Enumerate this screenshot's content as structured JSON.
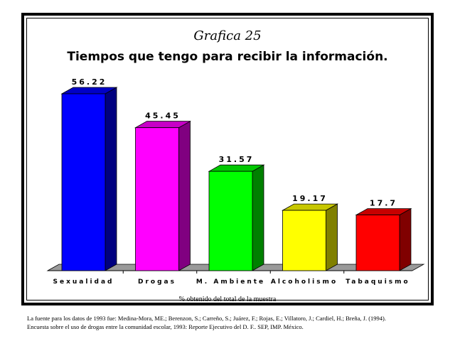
{
  "chart_data": {
    "type": "bar",
    "title": "Grafica 25",
    "subtitle": "Tiempos que tengo para recibir la información.",
    "categories": [
      "Sexualidad",
      "Drogas",
      "M. Ambiente",
      "Alcoholismo",
      "Tabaquismo"
    ],
    "values": [
      56.22,
      45.45,
      31.57,
      19.17,
      17.7
    ],
    "value_labels": [
      "56.22",
      "45.45",
      "31.57",
      "19.17",
      "17.7"
    ],
    "colors": [
      "#0000ff",
      "#ff00ff",
      "#00ff00",
      "#ffff00",
      "#ff0000"
    ],
    "xlabel": "% obtenido del total de la muestra",
    "ylabel": "",
    "ylim": [
      0,
      60
    ],
    "grid": false,
    "legend": "none",
    "style": "3d-bar"
  },
  "footer": {
    "source_line1": "La fuente para los datos de 1993 fue: Medina-Mora, ME.; Berenzon, S.; Carreño, S.; Juárez, F.; Rojas, E.; Villatoro, J.; Cardiel, H.; Breña, J. (1994).",
    "source_line2": "Encuesta sobre el uso de drogas entre la comunidad escolar, 1993: Reporte Ejecutivo del D. F.. SEP, IMP. México."
  }
}
